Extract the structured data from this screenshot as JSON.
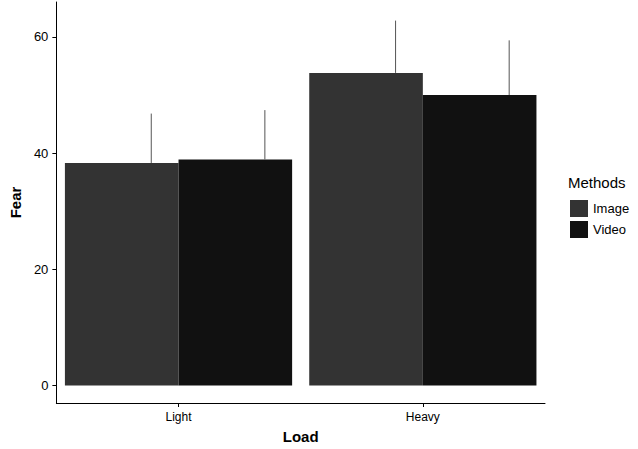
{
  "chart_data": {
    "type": "bar",
    "categories": [
      "Light",
      "Heavy"
    ],
    "x_label": "Load",
    "y_label": "Fear",
    "legend_title": "Methods",
    "series": [
      {
        "name": "Image",
        "color": "#333333",
        "values": [
          38.3,
          53.8
        ],
        "errors": [
          8.5,
          9.0
        ]
      },
      {
        "name": "Video",
        "color": "#111111",
        "values": [
          38.9,
          50.0
        ],
        "errors": [
          8.5,
          9.4
        ]
      }
    ],
    "ylim": [
      -3,
      66
    ],
    "yticks": [
      0,
      20,
      40,
      60
    ],
    "grid": false,
    "legend": "right"
  }
}
